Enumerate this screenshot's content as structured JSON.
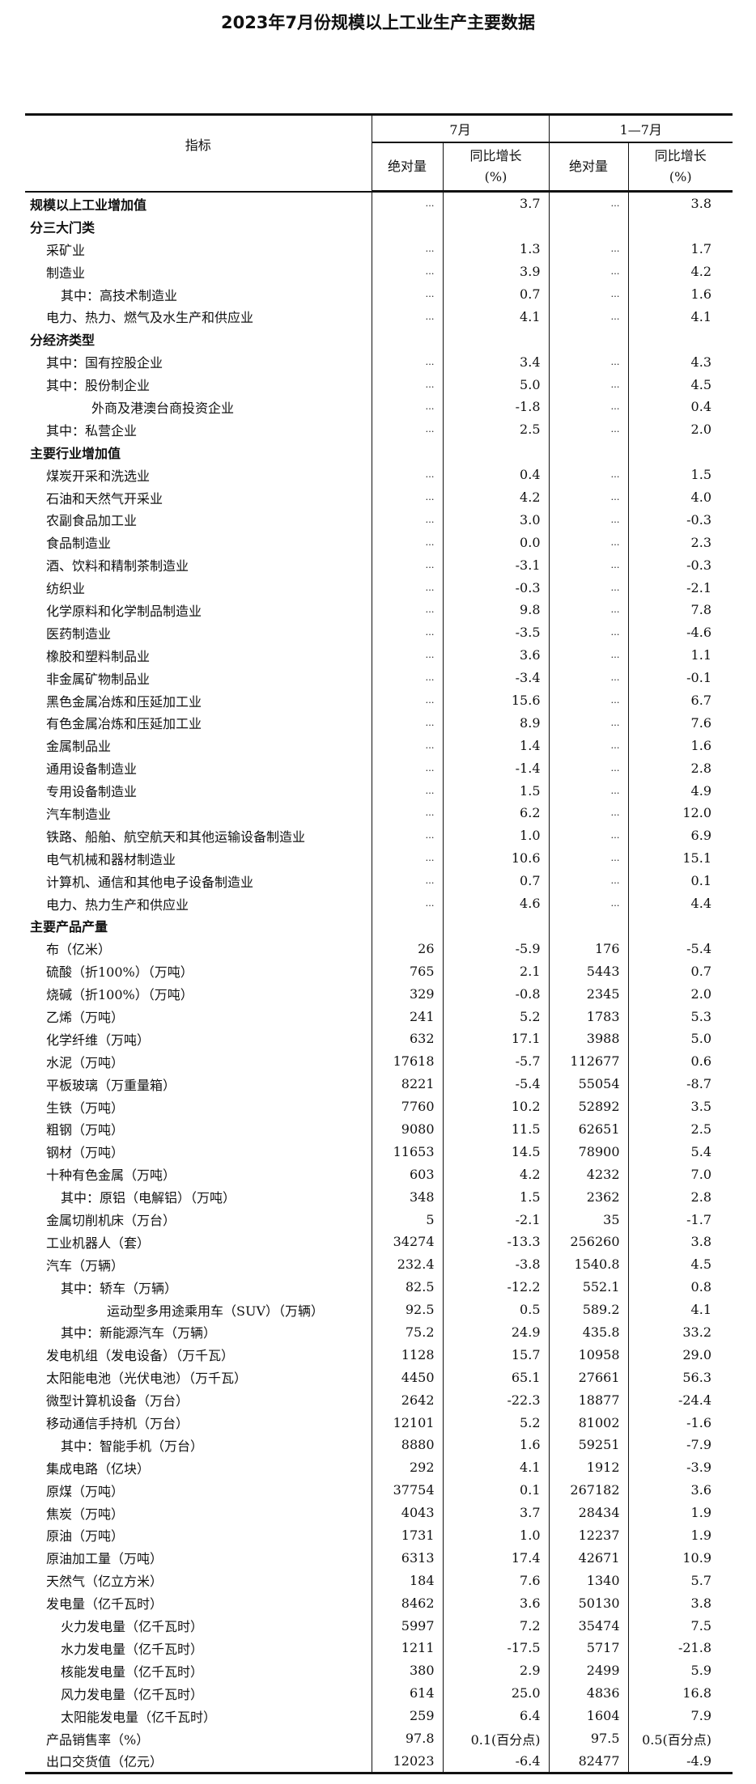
{
  "title": "2023年7月份规模以上工业生产主要数据",
  "header": {
    "indicator": "指标",
    "period1": "7月",
    "period2": "1—7月",
    "abs": "绝对量",
    "growth": "同比增长",
    "unit": "(%)"
  },
  "rows": [
    {
      "label": "规模以上工业增加值",
      "level": 0,
      "bold": true,
      "m_abs": "…",
      "m_yoy": "3.7",
      "c_abs": "…",
      "c_yoy": "3.8"
    },
    {
      "label": "分三大门类",
      "level": 0,
      "bold": true,
      "m_abs": "",
      "m_yoy": "",
      "c_abs": "",
      "c_yoy": ""
    },
    {
      "label": "采矿业",
      "level": 1,
      "m_abs": "…",
      "m_yoy": "1.3",
      "c_abs": "…",
      "c_yoy": "1.7"
    },
    {
      "label": "制造业",
      "level": 1,
      "m_abs": "…",
      "m_yoy": "3.9",
      "c_abs": "…",
      "c_yoy": "4.2"
    },
    {
      "label": "其中：高技术制造业",
      "level": 2,
      "m_abs": "…",
      "m_yoy": "0.7",
      "c_abs": "…",
      "c_yoy": "1.6"
    },
    {
      "label": "电力、热力、燃气及水生产和供应业",
      "level": 1,
      "m_abs": "…",
      "m_yoy": "4.1",
      "c_abs": "…",
      "c_yoy": "4.1"
    },
    {
      "label": "分经济类型",
      "level": 0,
      "bold": true,
      "m_abs": "",
      "m_yoy": "",
      "c_abs": "",
      "c_yoy": ""
    },
    {
      "label": "其中：国有控股企业",
      "level": 1,
      "m_abs": "…",
      "m_yoy": "3.4",
      "c_abs": "…",
      "c_yoy": "4.3"
    },
    {
      "label": "其中：股份制企业",
      "level": 1,
      "m_abs": "…",
      "m_yoy": "5.0",
      "c_abs": "…",
      "c_yoy": "4.5"
    },
    {
      "label": "外商及港澳台商投资企业",
      "level": 3,
      "m_abs": "…",
      "m_yoy": "-1.8",
      "c_abs": "…",
      "c_yoy": "0.4"
    },
    {
      "label": "其中：私营企业",
      "level": 1,
      "m_abs": "…",
      "m_yoy": "2.5",
      "c_abs": "…",
      "c_yoy": "2.0"
    },
    {
      "label": "主要行业增加值",
      "level": 0,
      "bold": true,
      "m_abs": "",
      "m_yoy": "",
      "c_abs": "",
      "c_yoy": ""
    },
    {
      "label": "煤炭开采和洗选业",
      "level": 1,
      "m_abs": "…",
      "m_yoy": "0.4",
      "c_abs": "…",
      "c_yoy": "1.5"
    },
    {
      "label": "石油和天然气开采业",
      "level": 1,
      "m_abs": "…",
      "m_yoy": "4.2",
      "c_abs": "…",
      "c_yoy": "4.0"
    },
    {
      "label": "农副食品加工业",
      "level": 1,
      "m_abs": "…",
      "m_yoy": "3.0",
      "c_abs": "…",
      "c_yoy": "-0.3"
    },
    {
      "label": "食品制造业",
      "level": 1,
      "m_abs": "…",
      "m_yoy": "0.0",
      "c_abs": "…",
      "c_yoy": "2.3"
    },
    {
      "label": "酒、饮料和精制茶制造业",
      "level": 1,
      "m_abs": "…",
      "m_yoy": "-3.1",
      "c_abs": "…",
      "c_yoy": "-0.3"
    },
    {
      "label": "纺织业",
      "level": 1,
      "m_abs": "…",
      "m_yoy": "-0.3",
      "c_abs": "…",
      "c_yoy": "-2.1"
    },
    {
      "label": "化学原料和化学制品制造业",
      "level": 1,
      "m_abs": "…",
      "m_yoy": "9.8",
      "c_abs": "…",
      "c_yoy": "7.8"
    },
    {
      "label": "医药制造业",
      "level": 1,
      "m_abs": "…",
      "m_yoy": "-3.5",
      "c_abs": "…",
      "c_yoy": "-4.6"
    },
    {
      "label": "橡胶和塑料制品业",
      "level": 1,
      "m_abs": "…",
      "m_yoy": "3.6",
      "c_abs": "…",
      "c_yoy": "1.1"
    },
    {
      "label": "非金属矿物制品业",
      "level": 1,
      "m_abs": "…",
      "m_yoy": "-3.4",
      "c_abs": "…",
      "c_yoy": "-0.1"
    },
    {
      "label": "黑色金属冶炼和压延加工业",
      "level": 1,
      "m_abs": "…",
      "m_yoy": "15.6",
      "c_abs": "…",
      "c_yoy": "6.7"
    },
    {
      "label": "有色金属冶炼和压延加工业",
      "level": 1,
      "m_abs": "…",
      "m_yoy": "8.9",
      "c_abs": "…",
      "c_yoy": "7.6"
    },
    {
      "label": "金属制品业",
      "level": 1,
      "m_abs": "…",
      "m_yoy": "1.4",
      "c_abs": "…",
      "c_yoy": "1.6"
    },
    {
      "label": "通用设备制造业",
      "level": 1,
      "m_abs": "…",
      "m_yoy": "-1.4",
      "c_abs": "…",
      "c_yoy": "2.8"
    },
    {
      "label": "专用设备制造业",
      "level": 1,
      "m_abs": "…",
      "m_yoy": "1.5",
      "c_abs": "…",
      "c_yoy": "4.9"
    },
    {
      "label": "汽车制造业",
      "level": 1,
      "m_abs": "…",
      "m_yoy": "6.2",
      "c_abs": "…",
      "c_yoy": "12.0"
    },
    {
      "label": "铁路、船舶、航空航天和其他运输设备制造业",
      "level": 1,
      "m_abs": "…",
      "m_yoy": "1.0",
      "c_abs": "…",
      "c_yoy": "6.9"
    },
    {
      "label": "电气机械和器材制造业",
      "level": 1,
      "m_abs": "…",
      "m_yoy": "10.6",
      "c_abs": "…",
      "c_yoy": "15.1"
    },
    {
      "label": "计算机、通信和其他电子设备制造业",
      "level": 1,
      "m_abs": "…",
      "m_yoy": "0.7",
      "c_abs": "…",
      "c_yoy": "0.1"
    },
    {
      "label": "电力、热力生产和供应业",
      "level": 1,
      "m_abs": "…",
      "m_yoy": "4.6",
      "c_abs": "…",
      "c_yoy": "4.4"
    },
    {
      "label": "主要产品产量",
      "level": 0,
      "bold": true,
      "m_abs": "",
      "m_yoy": "",
      "c_abs": "",
      "c_yoy": ""
    },
    {
      "label": "布（亿米）",
      "level": 1,
      "m_abs": "26",
      "m_yoy": "-5.9",
      "c_abs": "176",
      "c_yoy": "-5.4"
    },
    {
      "label": "硫酸（折100%）（万吨）",
      "level": 1,
      "m_abs": "765",
      "m_yoy": "2.1",
      "c_abs": "5443",
      "c_yoy": "0.7"
    },
    {
      "label": "烧碱（折100%）（万吨）",
      "level": 1,
      "m_abs": "329",
      "m_yoy": "-0.8",
      "c_abs": "2345",
      "c_yoy": "2.0"
    },
    {
      "label": "乙烯（万吨）",
      "level": 1,
      "m_abs": "241",
      "m_yoy": "5.2",
      "c_abs": "1783",
      "c_yoy": "5.3"
    },
    {
      "label": "化学纤维（万吨）",
      "level": 1,
      "m_abs": "632",
      "m_yoy": "17.1",
      "c_abs": "3988",
      "c_yoy": "5.0"
    },
    {
      "label": "水泥（万吨）",
      "level": 1,
      "m_abs": "17618",
      "m_yoy": "-5.7",
      "c_abs": "112677",
      "c_yoy": "0.6"
    },
    {
      "label": "平板玻璃（万重量箱）",
      "level": 1,
      "m_abs": "8221",
      "m_yoy": "-5.4",
      "c_abs": "55054",
      "c_yoy": "-8.7"
    },
    {
      "label": "生铁（万吨）",
      "level": 1,
      "m_abs": "7760",
      "m_yoy": "10.2",
      "c_abs": "52892",
      "c_yoy": "3.5"
    },
    {
      "label": "粗钢（万吨）",
      "level": 1,
      "m_abs": "9080",
      "m_yoy": "11.5",
      "c_abs": "62651",
      "c_yoy": "2.5"
    },
    {
      "label": "钢材（万吨）",
      "level": 1,
      "m_abs": "11653",
      "m_yoy": "14.5",
      "c_abs": "78900",
      "c_yoy": "5.4"
    },
    {
      "label": "十种有色金属（万吨）",
      "level": 1,
      "m_abs": "603",
      "m_yoy": "4.2",
      "c_abs": "4232",
      "c_yoy": "7.0"
    },
    {
      "label": "其中：原铝（电解铝）（万吨）",
      "level": 2,
      "m_abs": "348",
      "m_yoy": "1.5",
      "c_abs": "2362",
      "c_yoy": "2.8"
    },
    {
      "label": "金属切削机床（万台）",
      "level": 1,
      "m_abs": "5",
      "m_yoy": "-2.1",
      "c_abs": "35",
      "c_yoy": "-1.7"
    },
    {
      "label": "工业机器人（套）",
      "level": 1,
      "m_abs": "34274",
      "m_yoy": "-13.3",
      "c_abs": "256260",
      "c_yoy": "3.8"
    },
    {
      "label": "汽车（万辆）",
      "level": 1,
      "m_abs": "232.4",
      "m_yoy": "-3.8",
      "c_abs": "1540.8",
      "c_yoy": "4.5"
    },
    {
      "label": "其中：轿车（万辆）",
      "level": 2,
      "m_abs": "82.5",
      "m_yoy": "-12.2",
      "c_abs": "552.1",
      "c_yoy": "0.8"
    },
    {
      "label": "运动型多用途乘用车（SUV）（万辆）",
      "level": 4,
      "m_abs": "92.5",
      "m_yoy": "0.5",
      "c_abs": "589.2",
      "c_yoy": "4.1"
    },
    {
      "label": "其中：新能源汽车（万辆）",
      "level": 2,
      "m_abs": "75.2",
      "m_yoy": "24.9",
      "c_abs": "435.8",
      "c_yoy": "33.2"
    },
    {
      "label": "发电机组（发电设备）（万千瓦）",
      "level": 1,
      "m_abs": "1128",
      "m_yoy": "15.7",
      "c_abs": "10958",
      "c_yoy": "29.0"
    },
    {
      "label": "太阳能电池（光伏电池）（万千瓦）",
      "level": 1,
      "m_abs": "4450",
      "m_yoy": "65.1",
      "c_abs": "27661",
      "c_yoy": "56.3"
    },
    {
      "label": "微型计算机设备（万台）",
      "level": 1,
      "m_abs": "2642",
      "m_yoy": "-22.3",
      "c_abs": "18877",
      "c_yoy": "-24.4"
    },
    {
      "label": "移动通信手持机（万台）",
      "level": 1,
      "m_abs": "12101",
      "m_yoy": "5.2",
      "c_abs": "81002",
      "c_yoy": "-1.6"
    },
    {
      "label": "其中：智能手机（万台）",
      "level": 2,
      "m_abs": "8880",
      "m_yoy": "1.6",
      "c_abs": "59251",
      "c_yoy": "-7.9"
    },
    {
      "label": "集成电路（亿块）",
      "level": 1,
      "m_abs": "292",
      "m_yoy": "4.1",
      "c_abs": "1912",
      "c_yoy": "-3.9"
    },
    {
      "label": "原煤（万吨）",
      "level": 1,
      "m_abs": "37754",
      "m_yoy": "0.1",
      "c_abs": "267182",
      "c_yoy": "3.6"
    },
    {
      "label": "焦炭（万吨）",
      "level": 1,
      "m_abs": "4043",
      "m_yoy": "3.7",
      "c_abs": "28434",
      "c_yoy": "1.9"
    },
    {
      "label": "原油（万吨）",
      "level": 1,
      "m_abs": "1731",
      "m_yoy": "1.0",
      "c_abs": "12237",
      "c_yoy": "1.9"
    },
    {
      "label": "原油加工量（万吨）",
      "level": 1,
      "m_abs": "6313",
      "m_yoy": "17.4",
      "c_abs": "42671",
      "c_yoy": "10.9"
    },
    {
      "label": "天然气（亿立方米）",
      "level": 1,
      "m_abs": "184",
      "m_yoy": "7.6",
      "c_abs": "1340",
      "c_yoy": "5.7"
    },
    {
      "label": "发电量（亿千瓦时）",
      "level": 1,
      "m_abs": "8462",
      "m_yoy": "3.6",
      "c_abs": "50130",
      "c_yoy": "3.8"
    },
    {
      "label": "火力发电量（亿千瓦时）",
      "level": 2,
      "m_abs": "5997",
      "m_yoy": "7.2",
      "c_abs": "35474",
      "c_yoy": "7.5"
    },
    {
      "label": "水力发电量（亿千瓦时）",
      "level": 2,
      "m_abs": "1211",
      "m_yoy": "-17.5",
      "c_abs": "5717",
      "c_yoy": "-21.8"
    },
    {
      "label": "核能发电量（亿千瓦时）",
      "level": 2,
      "m_abs": "380",
      "m_yoy": "2.9",
      "c_abs": "2499",
      "c_yoy": "5.9"
    },
    {
      "label": "风力发电量（亿千瓦时）",
      "level": 2,
      "m_abs": "614",
      "m_yoy": "25.0",
      "c_abs": "4836",
      "c_yoy": "16.8"
    },
    {
      "label": "太阳能发电量（亿千瓦时）",
      "level": 2,
      "m_abs": "259",
      "m_yoy": "6.4",
      "c_abs": "1604",
      "c_yoy": "7.9"
    },
    {
      "label": "产品销售率（%）",
      "level": 1,
      "m_abs": "97.8",
      "m_yoy": "0.1(百分点)",
      "c_abs": "97.5",
      "c_yoy": "0.5(百分点)"
    },
    {
      "label": "出口交货值（亿元）",
      "level": 1,
      "m_abs": "12023",
      "m_yoy": "-6.4",
      "c_abs": "82477",
      "c_yoy": "-4.9"
    }
  ]
}
